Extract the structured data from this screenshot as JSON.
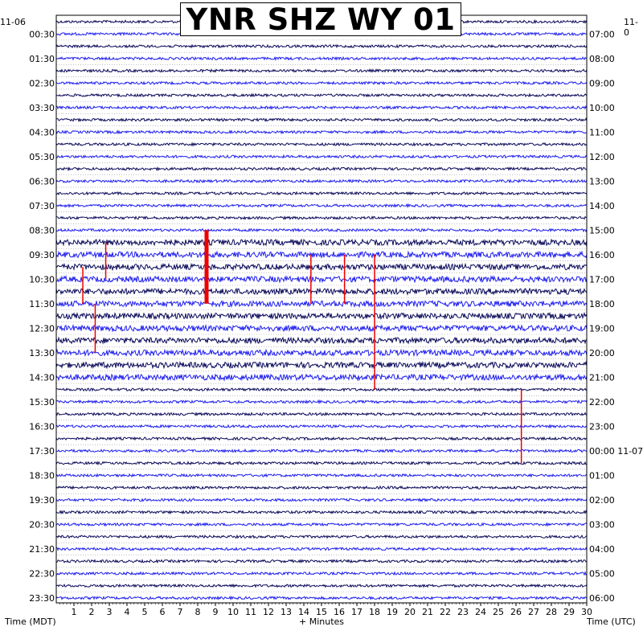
{
  "title": "YNR SHZ WY 01",
  "left_date": "11-06",
  "right_date": "11-0",
  "xlabel_left": "Time (MDT)",
  "xlabel_center": "+ Minutes",
  "xlabel_right": "Time (UTC)",
  "colors": {
    "trace_a": "#0a0a5a",
    "trace_b": "#1e1eee",
    "event": "#ee0000",
    "grid": "#9a9a9a"
  },
  "chart_data": {
    "type": "helicorder",
    "x_range": [
      0,
      30
    ],
    "x_ticks": [
      "1",
      "2",
      "3",
      "4",
      "5",
      "6",
      "7",
      "8",
      "9",
      "10",
      "11",
      "12",
      "13",
      "14",
      "15",
      "16",
      "17",
      "18",
      "19",
      "20",
      "21",
      "22",
      "23",
      "24",
      "25",
      "26",
      "27",
      "28",
      "29",
      "30"
    ],
    "rows": 48,
    "row_minutes": 30,
    "left_ticks": [
      "00:30",
      "01:30",
      "02:30",
      "03:30",
      "04:30",
      "05:30",
      "06:30",
      "07:30",
      "08:30",
      "09:30",
      "10:30",
      "11:30",
      "12:30",
      "13:30",
      "14:30",
      "15:30",
      "16:30",
      "17:30",
      "18:30",
      "19:30",
      "20:30",
      "21:30",
      "22:30",
      "23:30"
    ],
    "right_ticks": [
      "07:00",
      "08:00",
      "09:00",
      "10:00",
      "11:00",
      "12:00",
      "13:00",
      "14:00",
      "15:00",
      "16:00",
      "17:00",
      "18:00",
      "19:00",
      "20:00",
      "21:00",
      "22:00",
      "23:00",
      "00:00 11-07",
      "01:00",
      "02:00",
      "03:00",
      "04:00",
      "05:00",
      "06:00"
    ],
    "events": [
      {
        "row": 18,
        "minute": 8.5,
        "amplitude": 1.0,
        "span_rows": 6
      },
      {
        "row": 19,
        "minute": 2.8,
        "amplitude": 0.8,
        "span_rows": 3
      },
      {
        "row": 20,
        "minute": 14.4,
        "amplitude": 0.7,
        "span_rows": 4
      },
      {
        "row": 20,
        "minute": 18.0,
        "amplitude": 0.8,
        "span_rows": 11
      },
      {
        "row": 20,
        "minute": 16.3,
        "amplitude": 0.6,
        "span_rows": 4
      },
      {
        "row": 21,
        "minute": 1.5,
        "amplitude": 0.5,
        "span_rows": 3
      },
      {
        "row": 24,
        "minute": 2.2,
        "amplitude": 0.6,
        "span_rows": 4
      },
      {
        "row": 31,
        "minute": 26.3,
        "amplitude": 0.7,
        "span_rows": 6
      }
    ]
  }
}
